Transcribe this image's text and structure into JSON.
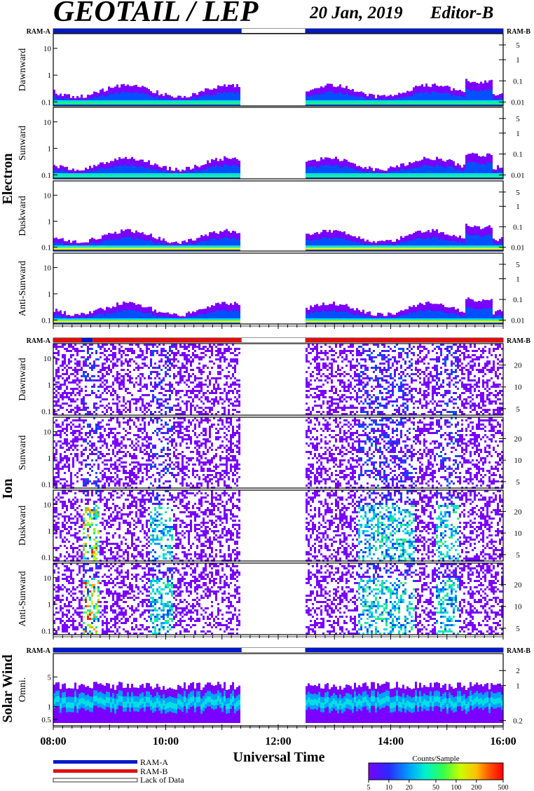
{
  "header": {
    "title": "GEOTAIL / LEP",
    "date": "20 Jan, 2019",
    "editor": "Editor-B"
  },
  "colors": {
    "ram_a": "#0018c8",
    "ram_b": "#e01010",
    "lack": "#ffffff",
    "colormap": [
      "#7a00ff",
      "#2a2aff",
      "#0070ff",
      "#00c8ff",
      "#00f0a0",
      "#40ff40",
      "#c8ff00",
      "#ffd000",
      "#ff7000",
      "#ff0000"
    ]
  },
  "chart_data": {
    "type": "heatmap",
    "x_axis": {
      "label": "Universal Time",
      "range_hours": [
        8,
        16
      ],
      "tick_labels": [
        "08:00",
        "10:00",
        "12:00",
        "14:00",
        "16:00"
      ],
      "tick_hours": [
        8,
        10,
        12,
        14,
        16
      ],
      "data_gap_hours": [
        11.35,
        12.48
      ]
    },
    "groups": [
      {
        "name": "Electron",
        "status_left": "RAM-A",
        "status_right": "RAM-B",
        "status_segments": [
          {
            "start": 8,
            "end": 11.35,
            "mode": "ram_a"
          },
          {
            "start": 11.35,
            "end": 12.48,
            "mode": "lack"
          },
          {
            "start": 12.48,
            "end": 16,
            "mode": "ram_a"
          }
        ],
        "panels": [
          {
            "label": "Dawnward",
            "left_ticks": [
              "10",
              "1",
              "0.1"
            ],
            "left_values": [
              10,
              1,
              0.1
            ],
            "right_ticks": [
              "5",
              "1",
              "0.1",
              "0.01"
            ],
            "right_values": [
              5,
              1,
              0.1,
              0.01
            ]
          },
          {
            "label": "Sunward",
            "left_ticks": [
              "10",
              "1",
              "0.1"
            ],
            "left_values": [
              10,
              1,
              0.1
            ],
            "right_ticks": [
              "5",
              "1",
              "0.1",
              "0.01"
            ],
            "right_values": [
              5,
              1,
              0.1,
              0.01
            ]
          },
          {
            "label": "Duskward",
            "left_ticks": [
              "10",
              "1",
              "0.1"
            ],
            "left_values": [
              10,
              1,
              0.1
            ],
            "right_ticks": [
              "5",
              "1",
              "0.1",
              "0.01"
            ],
            "right_values": [
              5,
              1,
              0.1,
              0.01
            ]
          },
          {
            "label": "Anti-Sunward",
            "left_ticks": [
              "10",
              "1",
              "0.1"
            ],
            "left_values": [
              10,
              1,
              0.1
            ],
            "right_ticks": [
              "5",
              "1",
              "0.1",
              "0.01"
            ],
            "right_values": [
              5,
              1,
              0.1,
              0.01
            ]
          }
        ]
      },
      {
        "name": "Ion",
        "status_left": "RAM-A",
        "status_right": "RAM-B",
        "status_segments": [
          {
            "start": 8,
            "end": 8.5,
            "mode": "ram_b"
          },
          {
            "start": 8.5,
            "end": 8.7,
            "mode": "ram_a"
          },
          {
            "start": 8.7,
            "end": 11.35,
            "mode": "ram_b"
          },
          {
            "start": 11.35,
            "end": 12.48,
            "mode": "lack"
          },
          {
            "start": 12.48,
            "end": 16,
            "mode": "ram_b"
          }
        ],
        "panels": [
          {
            "label": "Dawnward",
            "left_ticks": [
              "10",
              "1",
              "0.1"
            ],
            "left_values": [
              10,
              1,
              0.1
            ],
            "right_ticks": [
              "20",
              "10",
              "5"
            ],
            "right_values": [
              20,
              10,
              5
            ]
          },
          {
            "label": "Sunward",
            "left_ticks": [
              "10",
              "1",
              "0.1"
            ],
            "left_values": [
              10,
              1,
              0.1
            ],
            "right_ticks": [
              "20",
              "10",
              "5"
            ],
            "right_values": [
              20,
              10,
              5
            ]
          },
          {
            "label": "Duskward",
            "left_ticks": [
              "10",
              "1",
              "0.1"
            ],
            "left_values": [
              10,
              1,
              0.1
            ],
            "right_ticks": [
              "20",
              "10",
              "5"
            ],
            "right_values": [
              20,
              10,
              5
            ]
          },
          {
            "label": "Anti-Sunward",
            "left_ticks": [
              "10",
              "1",
              "0.1"
            ],
            "left_values": [
              10,
              1,
              0.1
            ],
            "right_ticks": [
              "20",
              "10",
              "5"
            ],
            "right_values": [
              20,
              10,
              5
            ]
          }
        ]
      },
      {
        "name": "Solar Wind",
        "status_left": "RAM-A",
        "status_right": "RAM-B",
        "status_segments": [
          {
            "start": 8,
            "end": 11.35,
            "mode": "ram_a"
          },
          {
            "start": 11.35,
            "end": 12.48,
            "mode": "lack"
          },
          {
            "start": 12.48,
            "end": 16,
            "mode": "ram_a"
          }
        ],
        "panels": [
          {
            "label": "Omni.",
            "left_ticks": [
              "5",
              "1",
              "0.5"
            ],
            "left_values": [
              5,
              1,
              0.5
            ],
            "right_ticks": [
              "2",
              "1",
              "0.2"
            ],
            "right_values": [
              2,
              1,
              0.2
            ]
          }
        ]
      }
    ],
    "legend": {
      "items": [
        "RAM-A",
        "RAM-B",
        "Lack of Data"
      ]
    },
    "colorbar": {
      "title": "Counts/Sample",
      "scale": "log",
      "range": [
        5,
        500
      ],
      "tick_labels": [
        "5",
        "10",
        "20",
        "50",
        "100",
        "200",
        "500"
      ],
      "tick_values": [
        5,
        10,
        20,
        50,
        100,
        200,
        500
      ]
    }
  }
}
